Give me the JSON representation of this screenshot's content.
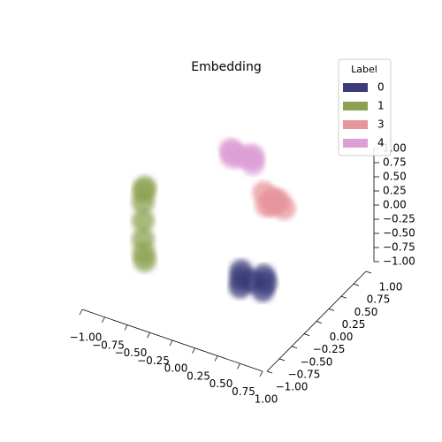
{
  "chart_data": {
    "type": "scatter3d",
    "title": "Embedding",
    "legend_title": "Label",
    "legend": "upper right",
    "series": [
      {
        "name": "0",
        "color": "#3b3b7a",
        "x": [
          0.22,
          0.05,
          0.4,
          0.3,
          0.15,
          0.35,
          0.1
        ],
        "y": [
          0.2,
          0.3,
          0.1,
          0.3,
          0.1,
          0.25,
          0.2
        ],
        "z": [
          -0.9,
          -0.9,
          -0.88,
          -0.85,
          -0.95,
          -0.9,
          -0.92
        ]
      },
      {
        "name": "1",
        "color": "#8ca252",
        "x": [
          -0.72,
          -0.7,
          -0.7,
          -0.72,
          -0.72,
          -0.68,
          -0.68
        ],
        "y": [
          -0.28,
          -0.3,
          -0.3,
          -0.28,
          -0.28,
          -0.32,
          -0.32
        ],
        "z": [
          0,
          0.5,
          -0.5,
          0.3,
          -0.3,
          0.6,
          -0.6
        ]
      },
      {
        "name": "3",
        "color": "#e7969c",
        "x": [
          0.41,
          0.3,
          0.5,
          0.45,
          0.35,
          0.5,
          0.3
        ],
        "y": [
          0.31,
          0.3,
          0.35,
          0.2,
          0.4,
          0.25,
          0.35
        ],
        "z": [
          0.4,
          0.5,
          0.3,
          0.45,
          0.35,
          0.5,
          0.25
        ]
      },
      {
        "name": "4",
        "color": "#de9ed6",
        "x": [
          0,
          -0.15,
          0.15,
          -0.05,
          0.05,
          -0.1,
          0.1
        ],
        "y": [
          0.4,
          0.45,
          0.35,
          0.3,
          0.5,
          0.4,
          0.45
        ],
        "z": [
          0.85,
          0.85,
          0.85,
          0.9,
          0.82,
          0.88,
          0.84
        ]
      }
    ],
    "xlim": [
      -1,
      1
    ],
    "ylim": [
      -1,
      1
    ],
    "zlim": [
      -1,
      1
    ],
    "xticks": [
      {
        "value": -1,
        "label": "−1.00"
      },
      {
        "value": -0.75,
        "label": "−0.75"
      },
      {
        "value": -0.5,
        "label": "−0.50"
      },
      {
        "value": -0.25,
        "label": "−0.25"
      },
      {
        "value": 0,
        "label": "0.00"
      },
      {
        "value": 0.25,
        "label": "0.25"
      },
      {
        "value": 0.5,
        "label": "0.50"
      },
      {
        "value": 0.75,
        "label": "0.75"
      },
      {
        "value": 1,
        "label": "1.00"
      }
    ],
    "yticks": [
      {
        "value": -1,
        "label": "−1.00"
      },
      {
        "value": -0.75,
        "label": "−0.75"
      },
      {
        "value": -0.5,
        "label": "−0.50"
      },
      {
        "value": -0.25,
        "label": "−0.25"
      },
      {
        "value": 0,
        "label": "0.00"
      },
      {
        "value": 0.25,
        "label": "0.25"
      },
      {
        "value": 0.5,
        "label": "0.50"
      },
      {
        "value": 0.75,
        "label": "0.75"
      },
      {
        "value": 1,
        "label": "1.00"
      }
    ],
    "zticks": [
      {
        "value": -1,
        "label": "−1.00"
      },
      {
        "value": -0.75,
        "label": "−0.75"
      },
      {
        "value": -0.5,
        "label": "−0.50"
      },
      {
        "value": -0.25,
        "label": "−0.25"
      },
      {
        "value": 0,
        "label": "0.00"
      },
      {
        "value": 0.25,
        "label": "0.25"
      },
      {
        "value": 0.5,
        "label": "0.50"
      },
      {
        "value": 0.75,
        "label": "0.75"
      },
      {
        "value": 1,
        "label": "1.00"
      }
    ]
  }
}
